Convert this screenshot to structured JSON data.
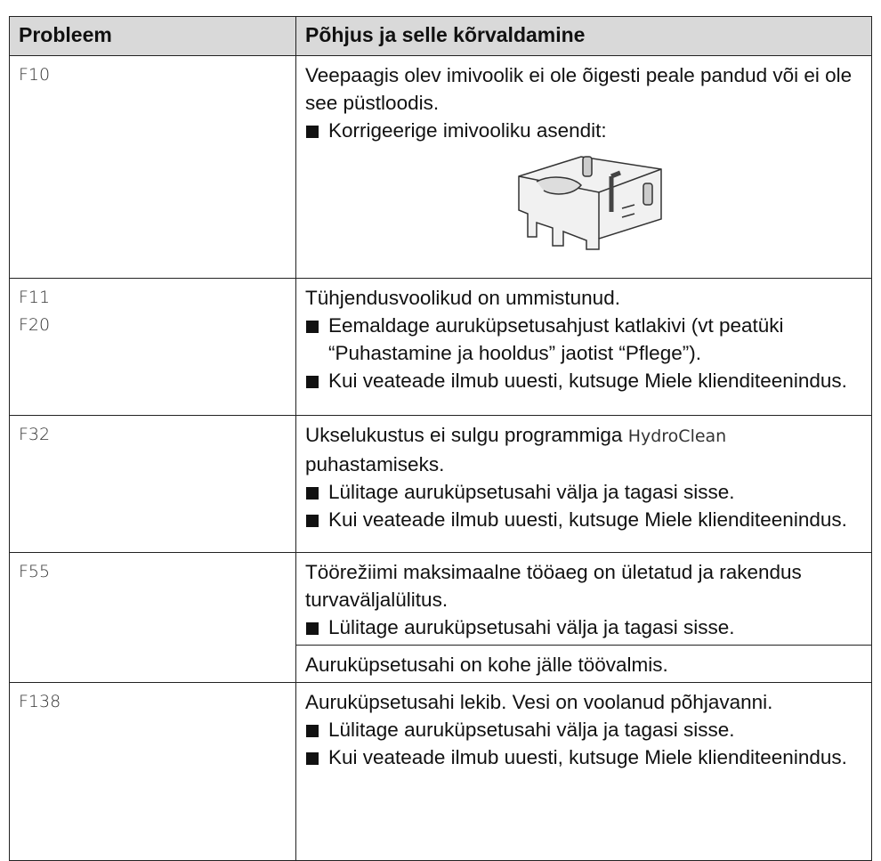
{
  "table": {
    "header": [
      "Probleem",
      "Põhjus ja selle kõrvaldamine"
    ],
    "rows": [
      {
        "codes": [
          "F10"
        ],
        "cause": "Veepaagis olev imivoolik ei ole õigesti peale pandud või ei ole see püstloodis.",
        "steps": [
          "Korrigeerige imivooliku asendit:"
        ]
      },
      {
        "codes": [
          "F11",
          "F20"
        ],
        "cause": "Tühjendusvoolikud on ummistunud.",
        "steps": [
          "Eemaldage auruküpsetusahjust katlakivi (vt peatüki “Puhastamine ja hooldus” jaotist “Pflege”).",
          "Kui veateade ilmub uuesti, kutsuge Miele klienditeenindus."
        ]
      },
      {
        "codes": [
          "F32"
        ],
        "cause": "Ukselukustus ei sulgu programmiga",
        "program": "HydroClean",
        "cause_end": "puhastamiseks.",
        "steps": [
          "Lülitage auruküpsetusahi välja ja tagasi sisse.",
          "Kui veateade ilmub uuesti, kutsuge Miele klienditeenindus."
        ]
      },
      {
        "codes": [
          "F55"
        ],
        "cause": "Töörežiimi maksimaalne tööaeg on ületatud ja rakendus turvaväljalülitus.",
        "steps": [
          "Lülitage auruküpsetusahi välja ja tagasi sisse."
        ],
        "note": "Auruküpsetusahi on kohe jälle töövalmis."
      },
      {
        "codes": [
          "F138"
        ],
        "cause": "Auruküpsetusahi lekib. Vesi on voolanud põhjavanni.",
        "steps": [
          "Lülitage auruküpsetusahi välja ja tagasi sisse.",
          "Kui veateade ilmub uuesti, kutsuge Miele klienditeenindus."
        ]
      }
    ]
  }
}
